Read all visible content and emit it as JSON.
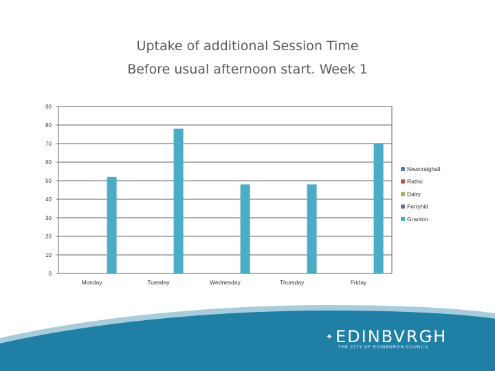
{
  "title": {
    "line1": "Uptake of additional Session Time",
    "line2": "Before usual afternoon start.  Week 1"
  },
  "colors": {
    "bar": "#4bacc6",
    "grid": "#7f7f7f",
    "footer_band": "#1f7fa5",
    "footer_band_light": "#a7cddd"
  },
  "chart_data": {
    "type": "bar",
    "categories": [
      "Monday",
      "Tuesday",
      "Wednesday",
      "Thursday",
      "Friday"
    ],
    "series": [
      {
        "name": "Granton",
        "color": "#4bacc6",
        "values": [
          52,
          78,
          48,
          48,
          70
        ]
      }
    ],
    "legend": [
      {
        "name": "Newcraighall",
        "color": "#4f81bd"
      },
      {
        "name": "Ratho",
        "color": "#c0504d"
      },
      {
        "name": "Dalry",
        "color": "#9bbb59"
      },
      {
        "name": "Ferryhill",
        "color": "#8064a2"
      },
      {
        "name": "Granton",
        "color": "#4bacc6"
      }
    ],
    "y_ticks": [
      "90",
      "80",
      "70",
      "60",
      "50",
      "40",
      "30",
      "20",
      "10",
      "0"
    ],
    "ylim": [
      0,
      90
    ],
    "grid": true,
    "legend_position": "right"
  },
  "logo": {
    "name": "EDINBVRGH",
    "subtitle": "THE CITY OF EDINBURGH COUNCIL"
  }
}
